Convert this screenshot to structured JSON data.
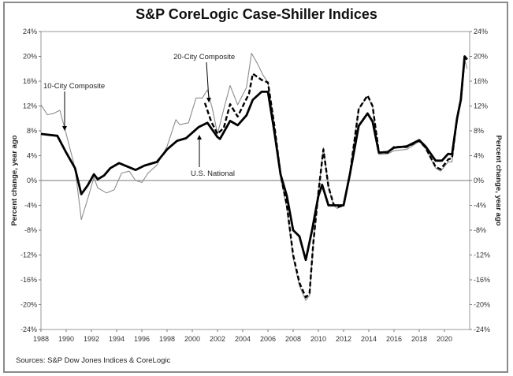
{
  "chart_data": {
    "type": "line",
    "title": "S&P CoreLogic Case-Shiller Indices",
    "ylabel_left": "Percent change, year ago",
    "ylabel_right": "Percent change, year ago",
    "xlim": [
      1988,
      2022
    ],
    "ylim": [
      -24,
      24
    ],
    "x_ticks": [
      "1988",
      "1990",
      "1992",
      "1994",
      "1996",
      "1998",
      "2000",
      "2002",
      "2004",
      "2006",
      "2008",
      "2010",
      "2012",
      "2014",
      "2016",
      "2018",
      "2020"
    ],
    "y_ticks": [
      "24%",
      "20%",
      "16%",
      "12%",
      "8%",
      "4%",
      "0%",
      "-4%",
      "-8%",
      "-12%",
      "-16%",
      "-20%",
      "-24%"
    ],
    "grid": false,
    "colors": {
      "national": "#000000",
      "city20": "#000000",
      "city10": "#8c8c8c"
    },
    "series": [
      {
        "name": "U.S. National",
        "style": "thick-solid",
        "x": [
          1988,
          1989.3,
          1990,
          1990.7,
          1991.2,
          1991.7,
          1992.2,
          1992.5,
          1993,
          1993.5,
          1994.2,
          1995.5,
          1996.2,
          1997.2,
          1998,
          1998.8,
          1999.5,
          2000.5,
          2001.2,
          2002,
          2002.2,
          2003,
          2003.6,
          2004.3,
          2004.8,
          2005.5,
          2006,
          2006.5,
          2007,
          2007.5,
          2008,
          2008.5,
          2009,
          2009.5,
          2010,
          2010.3,
          2010.8,
          2011.5,
          2012,
          2012.5,
          2013.2,
          2013.9,
          2014.3,
          2014.8,
          2015.5,
          2016,
          2017,
          2018,
          2018.5,
          2019.3,
          2019.8,
          2020.3,
          2020.6,
          2021,
          2021.3,
          2021.6,
          2021.8
        ],
        "y": [
          7.5,
          7.2,
          4.5,
          2,
          -2.2,
          -0.8,
          1,
          0.2,
          0.8,
          2,
          2.8,
          1.7,
          2.4,
          3,
          5,
          6.4,
          6.8,
          8.6,
          9.3,
          7,
          6.7,
          9.6,
          8.9,
          10.5,
          13,
          14.3,
          14.3,
          8,
          1,
          -2.5,
          -8,
          -9,
          -12.8,
          -8,
          -2.5,
          -0.7,
          -4,
          -4,
          -4,
          1,
          8.8,
          10.8,
          9.5,
          4.5,
          4.6,
          5.3,
          5.5,
          6.5,
          5.5,
          3.2,
          3.2,
          4.3,
          4.2,
          10,
          13,
          20,
          19.5
        ]
      },
      {
        "name": "20-City Composite",
        "style": "dashed",
        "x": [
          2001,
          2001.5,
          2002,
          2002.5,
          2003,
          2003.6,
          2004.5,
          2004.8,
          2005.5,
          2006,
          2006.5,
          2007,
          2007.5,
          2008,
          2008.5,
          2009,
          2009.3,
          2009.6,
          2010,
          2010.4,
          2010.8,
          2011.2,
          2011.5,
          2012,
          2012.5,
          2013.2,
          2013.9,
          2014.3,
          2014.8,
          2015.5,
          2016,
          2017,
          2018,
          2018.5,
          2019.3,
          2019.7,
          2020.3,
          2020.6,
          2021,
          2021.3,
          2021.6,
          2021.8
        ],
        "y": [
          12.5,
          9.5,
          7.5,
          8.5,
          12.3,
          10.3,
          14,
          17.2,
          16.2,
          15.8,
          9,
          1,
          -4,
          -12,
          -16.5,
          -18.8,
          -18.2,
          -10,
          -2,
          5,
          -1,
          -3.8,
          -4.3,
          -4,
          1,
          11.5,
          13.7,
          12,
          4.5,
          4.5,
          5.4,
          5.4,
          6.4,
          5.3,
          2.2,
          1.8,
          3.4,
          3.6,
          10,
          13,
          19.8,
          19.5
        ]
      },
      {
        "name": "10-City Composite",
        "style": "thin-solid",
        "x": [
          1988,
          1988.5,
          1989,
          1989.5,
          1990,
          1990.7,
          1991.2,
          1991.7,
          1992.2,
          1992.5,
          1993.2,
          1993.8,
          1994.4,
          1995,
          1995.5,
          1996,
          1996.5,
          1997.2,
          1998,
          1998.7,
          1999,
          1999.7,
          2000.3,
          2000.8,
          2001.2,
          2001.6,
          2002,
          2002.5,
          2003,
          2003.6,
          2004.3,
          2004.7,
          2005.2,
          2005.6,
          2006,
          2006.5,
          2007,
          2007.5,
          2008,
          2008.5,
          2009,
          2009.3,
          2009.6,
          2010,
          2010.4,
          2010.8,
          2011.2,
          2011.5,
          2012,
          2012.5,
          2013.2,
          2013.9,
          2014.3,
          2014.8,
          2015.5,
          2016,
          2017,
          2018,
          2018.5,
          2019.3,
          2019.7,
          2020.3,
          2020.6,
          2021,
          2021.3,
          2021.6,
          2021.8
        ],
        "y": [
          12.2,
          10.6,
          10.8,
          11.3,
          7.5,
          2,
          -6.3,
          -3,
          0.5,
          -1.2,
          -2,
          -1.5,
          1.2,
          1.5,
          0,
          -0.3,
          1.2,
          2.5,
          5.5,
          9.8,
          9,
          9.3,
          13.3,
          13.3,
          14.6,
          11.5,
          7.5,
          11.5,
          15.3,
          12.2,
          15,
          20.5,
          18.7,
          17,
          15.8,
          9,
          0.5,
          -4.5,
          -12.5,
          -17,
          -19.3,
          -18.5,
          -10,
          -2,
          5.3,
          -1,
          -4,
          -4.5,
          -4,
          1,
          11.5,
          13.5,
          12,
          4.2,
          4.3,
          4.8,
          5,
          6.3,
          5.2,
          2,
          1.5,
          3,
          3,
          10,
          13,
          19.5,
          18
        ]
      }
    ],
    "annotations": [
      "10-City Composite",
      "20-City Composite",
      "U.S. National"
    ],
    "source": "Sources:  S&P Dow Jones Indices & CoreLogic"
  }
}
